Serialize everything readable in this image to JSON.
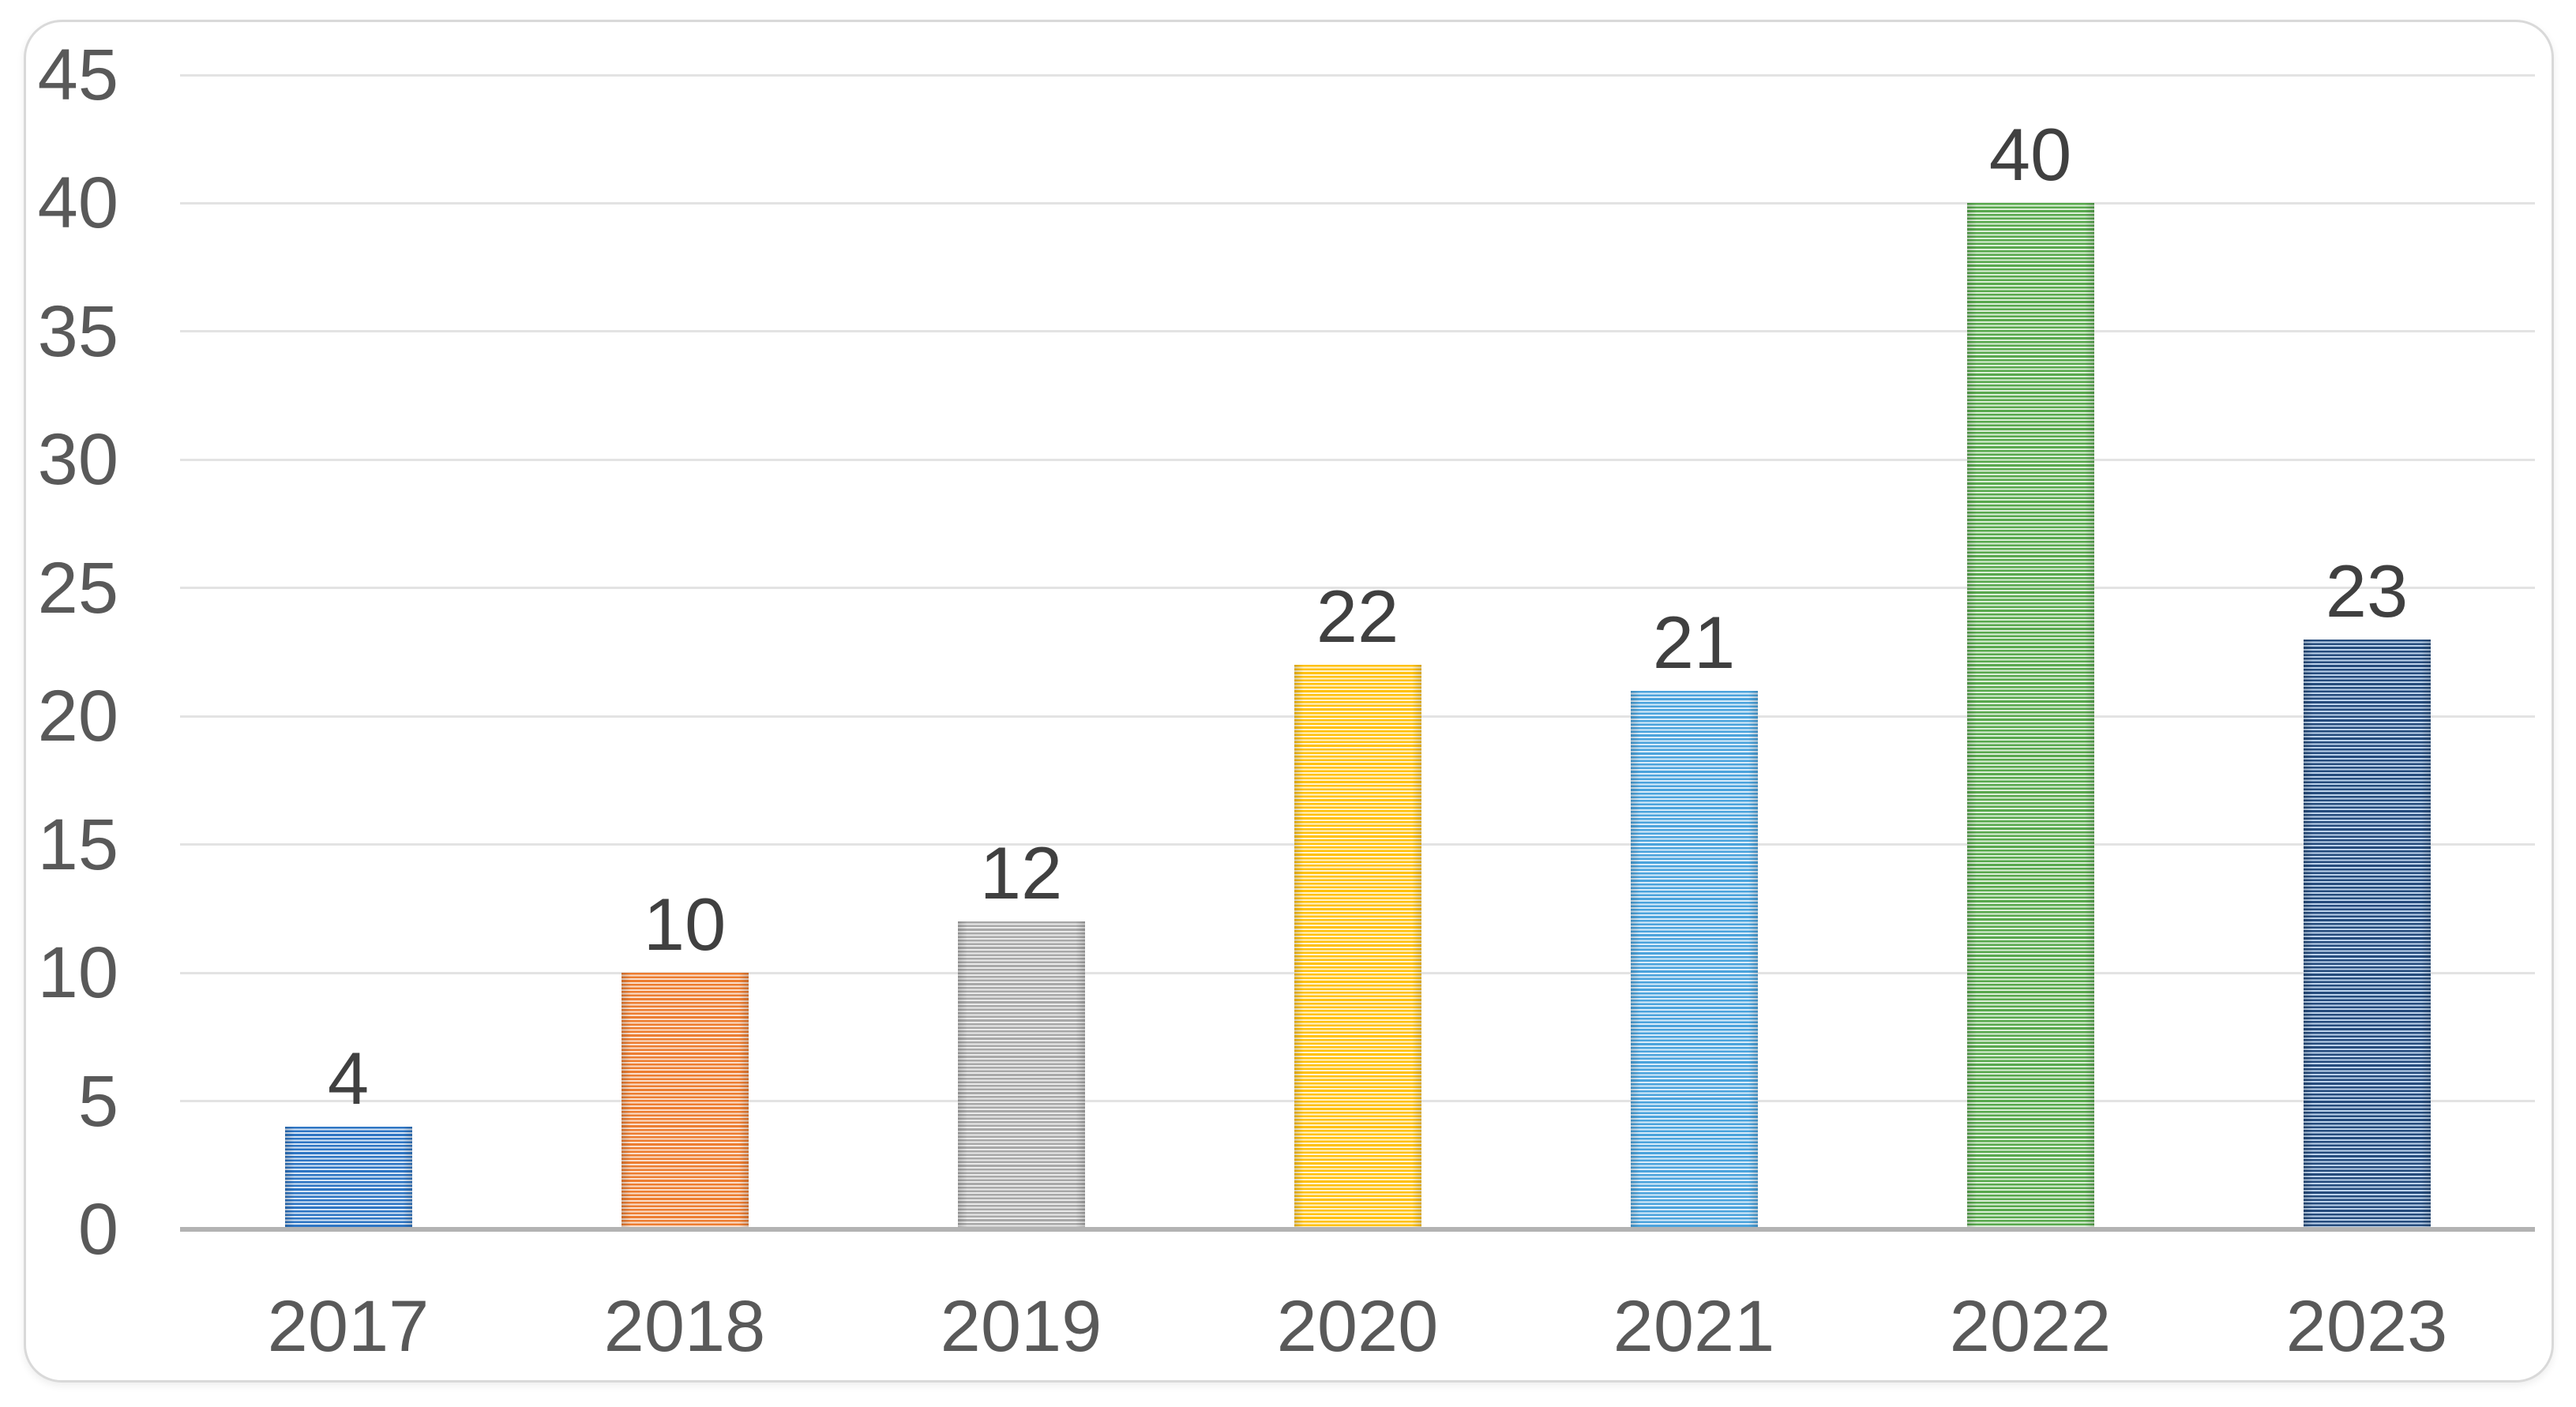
{
  "chart_data": {
    "type": "bar",
    "title": "",
    "xlabel": "",
    "ylabel": "",
    "categories": [
      "2017",
      "2018",
      "2019",
      "2020",
      "2021",
      "2022",
      "2023"
    ],
    "values": [
      4,
      10,
      12,
      22,
      21,
      40,
      23
    ],
    "data_labels": [
      "4",
      "10",
      "12",
      "22",
      "21",
      "40",
      "23"
    ],
    "ylim": [
      0,
      45
    ],
    "y_ticks": [
      0,
      5,
      10,
      15,
      20,
      25,
      30,
      35,
      40,
      45
    ],
    "grid": "horizontal",
    "legend": "none",
    "bar_fill_pattern": "horizontal-stripes",
    "bar_colors": [
      {
        "category": "2017",
        "dark": "#2E75C3",
        "light": "#D6E5F6"
      },
      {
        "category": "2018",
        "dark": "#ED7D31",
        "light": "#FBDFCC"
      },
      {
        "category": "2019",
        "dark": "#A8A8A8",
        "light": "#EAEAEA"
      },
      {
        "category": "2020",
        "dark": "#FFC10D",
        "light": "#FFF3D1"
      },
      {
        "category": "2021",
        "dark": "#4BA3DC",
        "light": "#D9ECFA"
      },
      {
        "category": "2022",
        "dark": "#58A84D",
        "light": "#DCEFD8"
      },
      {
        "category": "2023",
        "dark": "#254B7C",
        "light": "#BDD3EC"
      }
    ]
  },
  "colors": {
    "background": "#FFFFFF",
    "card_border": "#D9D9D9",
    "gridline": "#E3E3E3",
    "axis_line": "#B3B3B3",
    "tick_text": "#595959",
    "value_label_text": "#404040"
  }
}
